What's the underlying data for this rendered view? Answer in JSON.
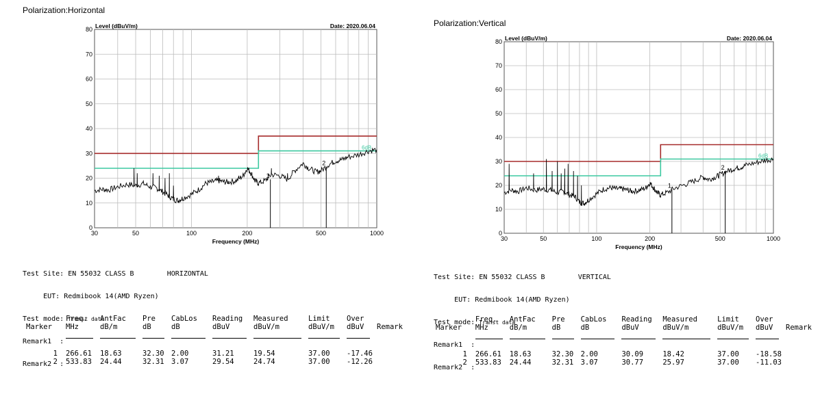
{
  "left": {
    "polarization_label": "Polarization:Horizontal",
    "test_site": "Test Site: EN 55032 CLASS B",
    "test_site_pol": "HORIZONTAL",
    "eut_line": "EUT: Redmibook 14(AMD Ryzen)",
    "test_mode_label": "Test mode:",
    "test_mode_value": "Transt data",
    "remark1": "Remark1  :",
    "remark2": "Remark2  :",
    "headers": [
      [
        "Marker",
        ""
      ],
      [
        "Freq.",
        "MHz"
      ],
      [
        "AntFac",
        "dB/m"
      ],
      [
        "Pre",
        "dB"
      ],
      [
        "CabLos",
        "dB"
      ],
      [
        "Reading",
        "dBuV"
      ],
      [
        "Measured",
        "dBuV/m"
      ],
      [
        "Limit",
        "dBuV/m"
      ],
      [
        "Over",
        "dBuV"
      ],
      [
        "Remark",
        ""
      ]
    ],
    "rows": [
      [
        "1",
        "266.61",
        "18.63",
        "32.30",
        "2.00",
        "31.21",
        "19.54",
        "37.00",
        "-17.46",
        ""
      ],
      [
        "2",
        "533.83",
        "24.44",
        "32.31",
        "3.07",
        "29.54",
        "24.74",
        "37.00",
        "-12.26",
        ""
      ]
    ]
  },
  "right": {
    "polarization_label": "Polarization:Vertical",
    "test_site": "Test Site: EN 55032 CLASS B",
    "test_site_pol": "VERTICAL",
    "eut_line": "EUT: Redmibook 14(AMD Ryzen)",
    "test_mode_label": "Test mode:",
    "test_mode_value": "Transt data",
    "remark1": "Remark1  :",
    "remark2": "Remark2  :",
    "headers": [
      [
        "Marker",
        ""
      ],
      [
        "Freq.",
        "MHz"
      ],
      [
        "AntFac",
        "dB/m"
      ],
      [
        "Pre",
        "dB"
      ],
      [
        "CabLos",
        "dB"
      ],
      [
        "Reading",
        "dBuV"
      ],
      [
        "Measured",
        "dBuV/m"
      ],
      [
        "Limit",
        "dBuV/m"
      ],
      [
        "Over",
        "dBuV"
      ],
      [
        "Remark",
        ""
      ]
    ],
    "rows": [
      [
        "1",
        "266.61",
        "18.63",
        "32.30",
        "2.00",
        "30.09",
        "18.42",
        "37.00",
        "-18.58",
        ""
      ],
      [
        "2",
        "533.83",
        "24.44",
        "32.31",
        "3.07",
        "30.77",
        "25.97",
        "37.00",
        "-11.03",
        ""
      ]
    ]
  },
  "chart_data": [
    {
      "type": "line",
      "ylabel": "Level (dBuV/m)",
      "xlabel": "Frequency (MHz)",
      "date_label": "Date: 2020.06.04",
      "x_scale": "log",
      "xlim": [
        30,
        1000
      ],
      "ylim": [
        0,
        80
      ],
      "xticks": [
        30,
        50,
        100,
        200,
        500,
        1000
      ],
      "xtick_labels": [
        "30",
        "50",
        "100",
        "200",
        "500",
        "1000"
      ],
      "yticks": [
        0,
        10,
        20,
        30,
        40,
        50,
        60,
        70,
        80
      ],
      "ytick_labels": [
        "0",
        "10",
        "20",
        "30",
        "40",
        "50",
        "60",
        "70",
        "80"
      ],
      "grid": true,
      "limit_line": {
        "color": "#a52a2a",
        "points": [
          [
            30,
            30
          ],
          [
            230,
            30
          ],
          [
            230,
            37
          ],
          [
            1000,
            37
          ]
        ]
      },
      "margin_line": {
        "color": "#3cc8a0",
        "label": "6dB",
        "points": [
          [
            30,
            24
          ],
          [
            230,
            24
          ],
          [
            230,
            31
          ],
          [
            1000,
            31
          ]
        ]
      },
      "trace": {
        "color": "#000000",
        "points": [
          [
            30,
            15
          ],
          [
            33,
            15.5
          ],
          [
            36,
            15.3
          ],
          [
            40,
            16.5
          ],
          [
            45,
            17.5
          ],
          [
            50,
            17
          ],
          [
            55,
            17.8
          ],
          [
            60,
            16.5
          ],
          [
            65,
            16
          ],
          [
            70,
            14.5
          ],
          [
            75,
            13
          ],
          [
            80,
            11.5
          ],
          [
            85,
            11
          ],
          [
            90,
            12
          ],
          [
            100,
            13.5
          ],
          [
            110,
            15.5
          ],
          [
            120,
            18
          ],
          [
            130,
            18.5
          ],
          [
            140,
            19
          ],
          [
            150,
            18.5
          ],
          [
            160,
            18.5
          ],
          [
            175,
            19
          ],
          [
            190,
            21
          ],
          [
            200,
            24
          ],
          [
            210,
            22
          ],
          [
            220,
            19
          ],
          [
            230,
            18
          ],
          [
            250,
            19
          ],
          [
            270,
            21.5
          ],
          [
            300,
            21
          ],
          [
            330,
            19.5
          ],
          [
            360,
            23
          ],
          [
            400,
            26
          ],
          [
            430,
            24
          ],
          [
            470,
            22.5
          ],
          [
            500,
            23
          ],
          [
            550,
            25.5
          ],
          [
            600,
            27
          ],
          [
            650,
            27.5
          ],
          [
            700,
            28.5
          ],
          [
            800,
            29.5
          ],
          [
            900,
            31
          ],
          [
            1000,
            31.5
          ]
        ],
        "spikes": [
          [
            49,
            24
          ],
          [
            51,
            22
          ],
          [
            62,
            22
          ],
          [
            67,
            21
          ],
          [
            72,
            20
          ],
          [
            76,
            22
          ],
          [
            80,
            17
          ],
          [
            140,
            21
          ],
          [
            180,
            21
          ],
          [
            270,
            24
          ],
          [
            330,
            22
          ]
        ]
      },
      "markers": [
        {
          "label": "1",
          "freq": 266.61,
          "level": 19.54
        },
        {
          "label": "2",
          "freq": 533.83,
          "level": 24.74
        }
      ]
    },
    {
      "type": "line",
      "ylabel": "Level (dBuV/m)",
      "xlabel": "Frequency (MHz)",
      "date_label": "Date: 2020.06.04",
      "x_scale": "log",
      "xlim": [
        30,
        1000
      ],
      "ylim": [
        0,
        80
      ],
      "xticks": [
        30,
        50,
        100,
        200,
        500,
        1000
      ],
      "xtick_labels": [
        "30",
        "50",
        "100",
        "200",
        "500",
        "1000"
      ],
      "yticks": [
        0,
        10,
        20,
        30,
        40,
        50,
        60,
        70,
        80
      ],
      "ytick_labels": [
        "0",
        "10",
        "20",
        "30",
        "40",
        "50",
        "60",
        "70",
        "80"
      ],
      "grid": true,
      "limit_line": {
        "color": "#a52a2a",
        "points": [
          [
            30,
            30
          ],
          [
            230,
            30
          ],
          [
            230,
            37
          ],
          [
            1000,
            37
          ]
        ]
      },
      "margin_line": {
        "color": "#3cc8a0",
        "label": "6dB",
        "points": [
          [
            30,
            24
          ],
          [
            230,
            24
          ],
          [
            230,
            31
          ],
          [
            1000,
            31
          ]
        ]
      },
      "trace": {
        "color": "#000000",
        "points": [
          [
            30,
            17
          ],
          [
            33,
            18
          ],
          [
            36,
            17.5
          ],
          [
            40,
            19
          ],
          [
            45,
            18
          ],
          [
            50,
            18.5
          ],
          [
            55,
            18
          ],
          [
            60,
            17
          ],
          [
            65,
            17.5
          ],
          [
            70,
            16
          ],
          [
            75,
            15.5
          ],
          [
            80,
            13
          ],
          [
            85,
            12.5
          ],
          [
            90,
            14
          ],
          [
            100,
            16.5
          ],
          [
            110,
            18.5
          ],
          [
            120,
            19
          ],
          [
            130,
            18.5
          ],
          [
            140,
            18.5
          ],
          [
            150,
            18
          ],
          [
            160,
            17.5
          ],
          [
            175,
            18
          ],
          [
            190,
            19
          ],
          [
            200,
            21
          ],
          [
            210,
            19
          ],
          [
            220,
            17
          ],
          [
            230,
            16
          ],
          [
            250,
            17
          ],
          [
            280,
            19
          ],
          [
            320,
            20.5
          ],
          [
            360,
            22
          ],
          [
            400,
            23.5
          ],
          [
            430,
            22.5
          ],
          [
            470,
            23.5
          ],
          [
            500,
            24.5
          ],
          [
            550,
            26
          ],
          [
            600,
            27
          ],
          [
            650,
            27.5
          ],
          [
            700,
            28.5
          ],
          [
            800,
            29.5
          ],
          [
            900,
            30.5
          ],
          [
            1000,
            31
          ]
        ],
        "spikes": [
          [
            32,
            29
          ],
          [
            44,
            25
          ],
          [
            52,
            31
          ],
          [
            56,
            26
          ],
          [
            60,
            30
          ],
          [
            63,
            25
          ],
          [
            66,
            27
          ],
          [
            69,
            29
          ],
          [
            74,
            26
          ],
          [
            78,
            24
          ],
          [
            82,
            20
          ]
        ]
      },
      "markers": [
        {
          "label": "1",
          "freq": 266.61,
          "level": 18.42
        },
        {
          "label": "2",
          "freq": 533.83,
          "level": 25.97
        }
      ]
    }
  ]
}
